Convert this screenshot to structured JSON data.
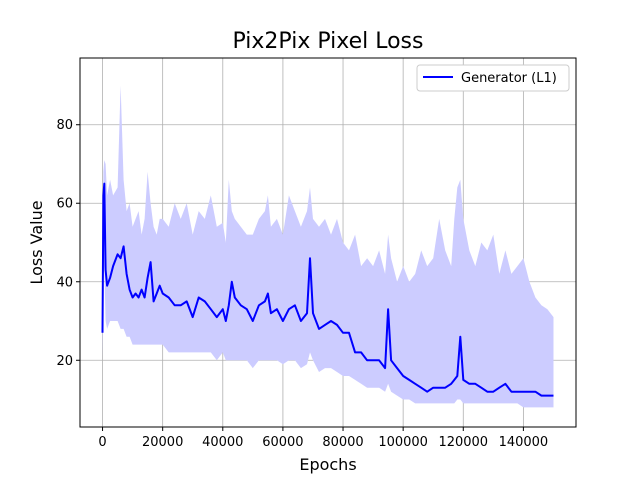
{
  "chart_data": {
    "type": "line",
    "title": "Pix2Pix Pixel Loss",
    "xlabel": "Epochs",
    "ylabel": "Loss Value",
    "xlim": [
      -7500,
      157500
    ],
    "ylim": [
      3,
      97
    ],
    "xticks": [
      0,
      20000,
      40000,
      60000,
      80000,
      100000,
      120000,
      140000
    ],
    "yticks": [
      20,
      40,
      60,
      80
    ],
    "grid": true,
    "legend_position": "top-right",
    "colors": {
      "series": "#0000ff",
      "band": "#ccccff"
    },
    "series": [
      {
        "name": "Generator (L1)",
        "x": [
          0,
          300,
          600,
          1000,
          1500,
          2500,
          3500,
          5000,
          6000,
          7000,
          8000,
          9000,
          10000,
          11000,
          12000,
          13000,
          14000,
          15000,
          16000,
          17000,
          18000,
          19000,
          20000,
          22000,
          24000,
          26000,
          28000,
          30000,
          32000,
          34000,
          36000,
          38000,
          40000,
          41000,
          42000,
          43000,
          44000,
          46000,
          48000,
          50000,
          52000,
          54000,
          55000,
          56000,
          58000,
          60000,
          62000,
          64000,
          66000,
          68000,
          69000,
          70000,
          72000,
          74000,
          76000,
          78000,
          80000,
          82000,
          84000,
          86000,
          88000,
          90000,
          92000,
          94000,
          95000,
          96000,
          98000,
          100000,
          102000,
          104000,
          106000,
          108000,
          110000,
          112000,
          114000,
          116000,
          117000,
          118000,
          119000,
          120000,
          122000,
          124000,
          126000,
          128000,
          130000,
          132000,
          134000,
          136000,
          138000,
          140000,
          142000,
          144000,
          146000,
          148000,
          150000
        ],
        "values": [
          27,
          62,
          65,
          43,
          39,
          41,
          44,
          47,
          46,
          49,
          42,
          38,
          36,
          37,
          36,
          38,
          36,
          41,
          45,
          35,
          37,
          39,
          37,
          36,
          34,
          34,
          35,
          31,
          36,
          35,
          33,
          31,
          33,
          30,
          34,
          40,
          36,
          34,
          33,
          30,
          34,
          35,
          37,
          32,
          33,
          30,
          33,
          34,
          30,
          32,
          46,
          32,
          28,
          29,
          30,
          29,
          27,
          27,
          22,
          22,
          20,
          20,
          20,
          18,
          33,
          20,
          18,
          16,
          15,
          14,
          13,
          12,
          13,
          13,
          13,
          14,
          15,
          16,
          26,
          15,
          14,
          14,
          13,
          12,
          12,
          13,
          14,
          12,
          12,
          12,
          12,
          12,
          11,
          11,
          11
        ],
        "band_lower": [
          20,
          40,
          44,
          30,
          28,
          30,
          30,
          30,
          28,
          28,
          26,
          26,
          24,
          24,
          24,
          24,
          24,
          24,
          24,
          24,
          24,
          24,
          24,
          22,
          22,
          22,
          22,
          22,
          22,
          22,
          22,
          20,
          22,
          20,
          20,
          20,
          20,
          20,
          20,
          18,
          20,
          20,
          20,
          20,
          20,
          19,
          20,
          20,
          18,
          19,
          22,
          20,
          17,
          18,
          18,
          17,
          16,
          16,
          15,
          14,
          13,
          13,
          13,
          12,
          14,
          12,
          11,
          10,
          10,
          9,
          9,
          9,
          9,
          9,
          9,
          9,
          9,
          10,
          10,
          9,
          9,
          9,
          9,
          9,
          9,
          9,
          9,
          9,
          9,
          8,
          8,
          8,
          8,
          8,
          8
        ],
        "band_upper": [
          40,
          68,
          71,
          70,
          62,
          66,
          62,
          64,
          90,
          66,
          58,
          60,
          54,
          56,
          58,
          52,
          56,
          68,
          60,
          54,
          52,
          56,
          56,
          54,
          60,
          56,
          60,
          52,
          58,
          56,
          62,
          54,
          55,
          50,
          66,
          58,
          56,
          54,
          52,
          52,
          56,
          58,
          62,
          54,
          56,
          52,
          62,
          58,
          54,
          58,
          64,
          56,
          54,
          56,
          52,
          56,
          50,
          48,
          52,
          44,
          46,
          44,
          48,
          42,
          52,
          46,
          40,
          44,
          40,
          42,
          48,
          44,
          46,
          56,
          48,
          44,
          56,
          64,
          66,
          56,
          48,
          44,
          50,
          48,
          52,
          42,
          48,
          42,
          44,
          46,
          40,
          36,
          34,
          33,
          31
        ]
      }
    ]
  }
}
